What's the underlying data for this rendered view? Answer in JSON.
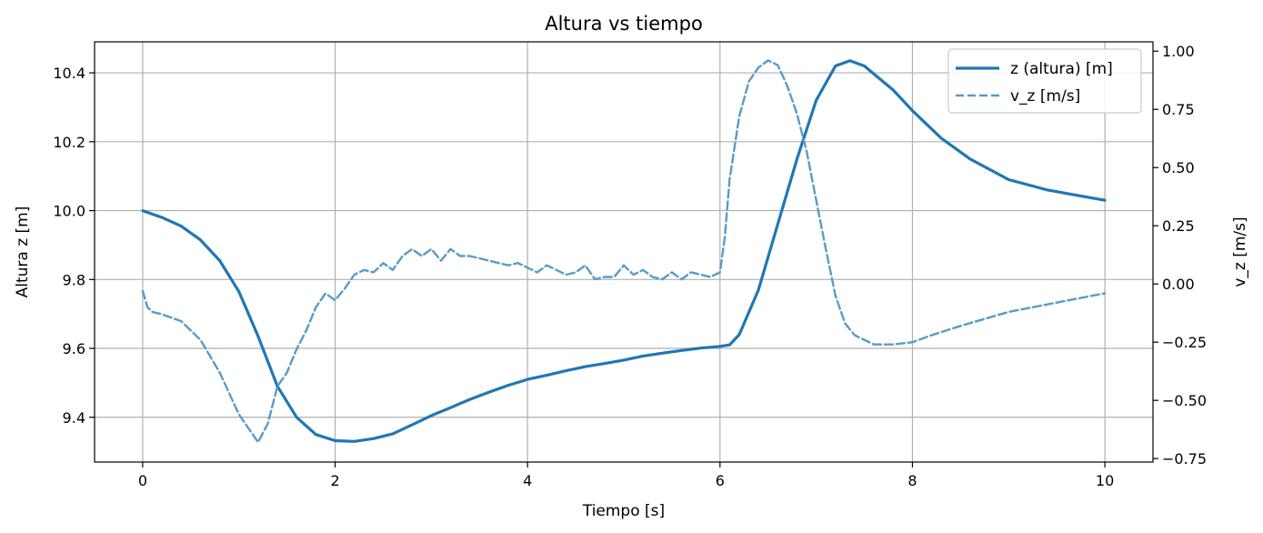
{
  "chart_data": {
    "type": "line",
    "title": "Altura vs tiempo",
    "xlabel": "Tiempo [s]",
    "ylabel_left": "Altura z [m]",
    "ylabel_right": "v_z [m/s]",
    "xlim": [
      -0.5,
      10.5
    ],
    "ylim_left": [
      9.27,
      10.49
    ],
    "ylim_right": [
      -0.765,
      1.04
    ],
    "x_ticks": [
      0,
      2,
      4,
      6,
      8,
      10
    ],
    "x_tick_labels": [
      "0",
      "2",
      "4",
      "6",
      "8",
      "10"
    ],
    "y_left_ticks": [
      9.4,
      9.6,
      9.8,
      10.0,
      10.2,
      10.4
    ],
    "y_left_tick_labels": [
      "9.4",
      "9.6",
      "9.8",
      "10.0",
      "10.2",
      "10.4"
    ],
    "y_right_ticks": [
      -0.75,
      -0.5,
      -0.25,
      0.0,
      0.25,
      0.5,
      0.75,
      1.0
    ],
    "y_right_tick_labels": [
      "−0.75",
      "−0.50",
      "−0.25",
      "0.00",
      "0.25",
      "0.50",
      "0.75",
      "1.00"
    ],
    "grid": true,
    "legend_position": "top-right",
    "series": [
      {
        "name": "z (altura) [m]",
        "axis": "left",
        "style": "solid",
        "color": "#1f77b4",
        "x": [
          0,
          0.2,
          0.4,
          0.6,
          0.8,
          1.0,
          1.2,
          1.4,
          1.6,
          1.8,
          2.0,
          2.2,
          2.4,
          2.6,
          2.8,
          3.0,
          3.2,
          3.4,
          3.6,
          3.8,
          4.0,
          4.2,
          4.4,
          4.6,
          4.8,
          5.0,
          5.2,
          5.4,
          5.6,
          5.8,
          6.0,
          6.1,
          6.2,
          6.4,
          6.6,
          6.8,
          7.0,
          7.2,
          7.35,
          7.5,
          7.8,
          8.0,
          8.3,
          8.6,
          9.0,
          9.4,
          9.8,
          10.0
        ],
        "y": [
          10.0,
          9.98,
          9.955,
          9.915,
          9.855,
          9.765,
          9.635,
          9.49,
          9.4,
          9.35,
          9.332,
          9.33,
          9.338,
          9.352,
          9.378,
          9.405,
          9.428,
          9.452,
          9.473,
          9.493,
          9.51,
          9.522,
          9.535,
          9.547,
          9.556,
          9.566,
          9.578,
          9.586,
          9.594,
          9.601,
          9.606,
          9.61,
          9.64,
          9.77,
          9.96,
          10.15,
          10.32,
          10.42,
          10.435,
          10.42,
          10.35,
          10.29,
          10.21,
          10.15,
          10.09,
          10.06,
          10.04,
          10.03
        ]
      },
      {
        "name": "v_z [m/s]",
        "axis": "right",
        "style": "dashed",
        "color": "#5a9bc9",
        "x": [
          0,
          0.05,
          0.1,
          0.2,
          0.4,
          0.6,
          0.8,
          1.0,
          1.1,
          1.2,
          1.3,
          1.4,
          1.5,
          1.6,
          1.7,
          1.8,
          1.9,
          2.0,
          2.1,
          2.2,
          2.3,
          2.4,
          2.5,
          2.6,
          2.7,
          2.8,
          2.9,
          3.0,
          3.1,
          3.2,
          3.3,
          3.4,
          3.5,
          3.6,
          3.7,
          3.8,
          3.9,
          4.0,
          4.1,
          4.2,
          4.3,
          4.4,
          4.5,
          4.6,
          4.7,
          4.8,
          4.9,
          5.0,
          5.1,
          5.2,
          5.3,
          5.4,
          5.5,
          5.6,
          5.7,
          5.8,
          5.9,
          6.0,
          6.05,
          6.1,
          6.2,
          6.3,
          6.4,
          6.5,
          6.6,
          6.7,
          6.8,
          6.9,
          7.0,
          7.1,
          7.2,
          7.3,
          7.4,
          7.6,
          7.8,
          8.0,
          8.2,
          8.5,
          9.0,
          9.5,
          10.0
        ],
        "y": [
          -0.03,
          -0.1,
          -0.12,
          -0.13,
          -0.16,
          -0.24,
          -0.38,
          -0.56,
          -0.62,
          -0.68,
          -0.6,
          -0.44,
          -0.38,
          -0.28,
          -0.2,
          -0.1,
          -0.04,
          -0.07,
          -0.02,
          0.04,
          0.06,
          0.05,
          0.09,
          0.06,
          0.12,
          0.15,
          0.12,
          0.15,
          0.1,
          0.15,
          0.12,
          0.12,
          0.11,
          0.1,
          0.09,
          0.08,
          0.09,
          0.07,
          0.05,
          0.08,
          0.06,
          0.04,
          0.05,
          0.08,
          0.02,
          0.03,
          0.03,
          0.08,
          0.04,
          0.06,
          0.03,
          0.02,
          0.05,
          0.02,
          0.05,
          0.04,
          0.03,
          0.05,
          0.2,
          0.45,
          0.72,
          0.87,
          0.93,
          0.96,
          0.94,
          0.85,
          0.73,
          0.57,
          0.36,
          0.15,
          -0.05,
          -0.17,
          -0.22,
          -0.26,
          -0.26,
          -0.25,
          -0.22,
          -0.18,
          -0.12,
          -0.08,
          -0.04
        ]
      }
    ]
  }
}
